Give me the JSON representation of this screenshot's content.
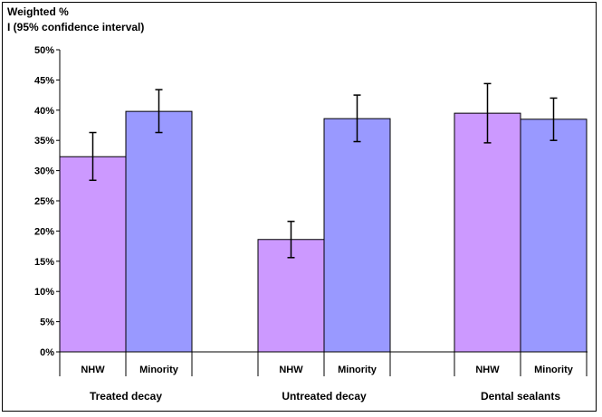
{
  "chart_data": {
    "type": "bar",
    "ylabel_line1": "Weighted %",
    "ylabel_line2": "I (95% confidence interval)",
    "ylim": [
      0,
      50
    ],
    "yticks": [
      "0%",
      "5%",
      "10%",
      "15%",
      "20%",
      "25%",
      "30%",
      "35%",
      "40%",
      "45%",
      "50%"
    ],
    "grid": false,
    "groups": [
      {
        "label": "Treated decay",
        "bars": [
          {
            "label": "NHW",
            "value": 32.3,
            "ci_low": 28.4,
            "ci_high": 36.3
          },
          {
            "label": "Minority",
            "value": 39.8,
            "ci_low": 36.3,
            "ci_high": 43.4
          }
        ]
      },
      {
        "label": "Untreated decay",
        "bars": [
          {
            "label": "NHW",
            "value": 18.6,
            "ci_low": 15.6,
            "ci_high": 21.6
          },
          {
            "label": "Minority",
            "value": 38.6,
            "ci_low": 34.8,
            "ci_high": 42.5
          }
        ]
      },
      {
        "label": "Dental sealants",
        "bars": [
          {
            "label": "NHW",
            "value": 39.5,
            "ci_low": 34.6,
            "ci_high": 44.4
          },
          {
            "label": "Minority",
            "value": 38.5,
            "ci_low": 35.0,
            "ci_high": 42.0
          }
        ]
      }
    ],
    "colors": {
      "NHW": "#cc99ff",
      "Minority": "#9999ff"
    }
  }
}
